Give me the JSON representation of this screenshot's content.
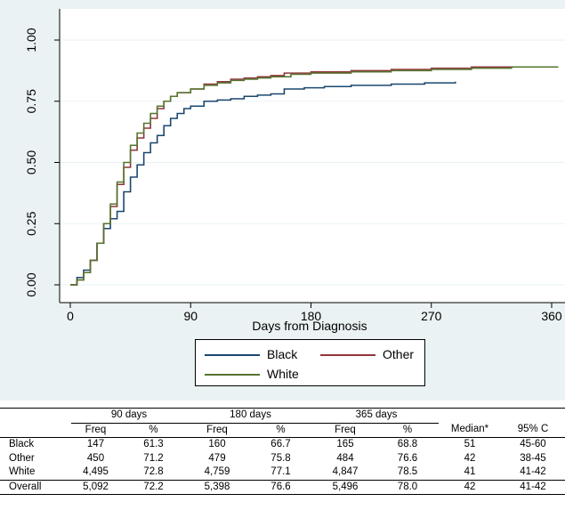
{
  "chart_data": {
    "type": "line",
    "title": "",
    "xlabel": "Days from Diagnosis",
    "ylabel": "",
    "xlim": [
      0,
      365
    ],
    "ylim": [
      0,
      1
    ],
    "x_ticks": [
      0,
      90,
      180,
      270,
      360
    ],
    "y_ticks": [
      0,
      0.25,
      0.5,
      0.75,
      1.0
    ],
    "x_tick_labels": [
      "0",
      "90",
      "180",
      "270",
      "360"
    ],
    "y_tick_labels": [
      "0.00",
      "0.25",
      "0.50",
      "0.75",
      "1.00"
    ],
    "grid": "horizontal",
    "legend_position": "bottom",
    "series": [
      {
        "name": "Black",
        "color": "#1a476f",
        "points": [
          [
            0,
            0
          ],
          [
            5,
            0.03
          ],
          [
            10,
            0.06
          ],
          [
            15,
            0.1
          ],
          [
            20,
            0.17
          ],
          [
            25,
            0.23
          ],
          [
            30,
            0.27
          ],
          [
            35,
            0.3
          ],
          [
            40,
            0.38
          ],
          [
            45,
            0.44
          ],
          [
            50,
            0.49
          ],
          [
            55,
            0.54
          ],
          [
            60,
            0.58
          ],
          [
            65,
            0.61
          ],
          [
            70,
            0.65
          ],
          [
            75,
            0.68
          ],
          [
            80,
            0.7
          ],
          [
            85,
            0.72
          ],
          [
            90,
            0.73
          ],
          [
            100,
            0.75
          ],
          [
            110,
            0.755
          ],
          [
            120,
            0.76
          ],
          [
            130,
            0.77
          ],
          [
            140,
            0.775
          ],
          [
            150,
            0.78
          ],
          [
            160,
            0.8
          ],
          [
            175,
            0.805
          ],
          [
            190,
            0.81
          ],
          [
            210,
            0.815
          ],
          [
            240,
            0.82
          ],
          [
            265,
            0.825
          ],
          [
            288,
            0.83
          ]
        ]
      },
      {
        "name": "Other",
        "color": "#90353b",
        "points": [
          [
            0,
            0
          ],
          [
            5,
            0.02
          ],
          [
            10,
            0.05
          ],
          [
            15,
            0.1
          ],
          [
            20,
            0.17
          ],
          [
            25,
            0.25
          ],
          [
            30,
            0.32
          ],
          [
            35,
            0.41
          ],
          [
            40,
            0.48
          ],
          [
            45,
            0.55
          ],
          [
            50,
            0.6
          ],
          [
            55,
            0.64
          ],
          [
            60,
            0.68
          ],
          [
            65,
            0.72
          ],
          [
            70,
            0.75
          ],
          [
            75,
            0.77
          ],
          [
            80,
            0.785
          ],
          [
            90,
            0.8
          ],
          [
            100,
            0.82
          ],
          [
            110,
            0.83
          ],
          [
            120,
            0.84
          ],
          [
            130,
            0.845
          ],
          [
            140,
            0.85
          ],
          [
            150,
            0.855
          ],
          [
            160,
            0.865
          ],
          [
            180,
            0.87
          ],
          [
            210,
            0.875
          ],
          [
            240,
            0.88
          ],
          [
            270,
            0.885
          ],
          [
            300,
            0.89
          ],
          [
            340,
            0.89
          ],
          [
            365,
            0.89
          ]
        ]
      },
      {
        "name": "White",
        "color": "#55752f",
        "points": [
          [
            0,
            0
          ],
          [
            5,
            0.02
          ],
          [
            10,
            0.05
          ],
          [
            15,
            0.1
          ],
          [
            20,
            0.17
          ],
          [
            25,
            0.25
          ],
          [
            30,
            0.33
          ],
          [
            35,
            0.42
          ],
          [
            40,
            0.5
          ],
          [
            45,
            0.57
          ],
          [
            50,
            0.62
          ],
          [
            55,
            0.66
          ],
          [
            60,
            0.7
          ],
          [
            65,
            0.73
          ],
          [
            70,
            0.75
          ],
          [
            75,
            0.77
          ],
          [
            80,
            0.785
          ],
          [
            90,
            0.8
          ],
          [
            100,
            0.815
          ],
          [
            110,
            0.825
          ],
          [
            120,
            0.835
          ],
          [
            130,
            0.84
          ],
          [
            140,
            0.845
          ],
          [
            150,
            0.85
          ],
          [
            165,
            0.86
          ],
          [
            180,
            0.865
          ],
          [
            210,
            0.87
          ],
          [
            240,
            0.875
          ],
          [
            270,
            0.88
          ],
          [
            300,
            0.885
          ],
          [
            330,
            0.89
          ],
          [
            365,
            0.89
          ]
        ]
      }
    ]
  },
  "legend": {
    "items": [
      {
        "label": "Black",
        "color": "#1a476f"
      },
      {
        "label": "Other",
        "color": "#90353b"
      },
      {
        "label": "White",
        "color": "#55752f"
      }
    ]
  },
  "table": {
    "group_headers": [
      "90 days",
      "180 days",
      "365 days"
    ],
    "column_headers": [
      "Freq",
      "%",
      "Freq",
      "%",
      "Freq",
      "%",
      "Median*",
      "95% C"
    ],
    "rows": [
      {
        "label": "Black",
        "cells": [
          "147",
          "61.3",
          "160",
          "66.7",
          "165",
          "68.8",
          "51",
          "45-60"
        ]
      },
      {
        "label": "Other",
        "cells": [
          "450",
          "71.2",
          "479",
          "75.8",
          "484",
          "76.6",
          "42",
          "38-45"
        ]
      },
      {
        "label": "White",
        "cells": [
          "4,495",
          "72.8",
          "4,759",
          "77.1",
          "4,847",
          "78.5",
          "41",
          "41-42"
        ]
      },
      {
        "label": "Overall",
        "cells": [
          "5,092",
          "72.2",
          "5,398",
          "76.6",
          "5,496",
          "78.0",
          "42",
          "41-42"
        ]
      }
    ]
  }
}
